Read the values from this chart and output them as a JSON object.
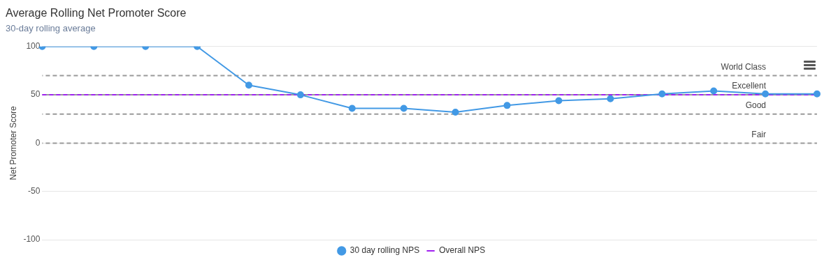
{
  "chart_data": {
    "type": "line",
    "title": "Average Rolling Net Promoter Score",
    "subtitle": "30-day rolling average",
    "ylabel": "Net Promoter Score",
    "categories": [
      null,
      null,
      null,
      null,
      null,
      null,
      null,
      null,
      null,
      null,
      null,
      null,
      null,
      null,
      null,
      null
    ],
    "series": [
      {
        "name": "30 day rolling NPS",
        "color": "#4299e5",
        "marker": "circle",
        "line_style": "solid",
        "values": [
          100,
          100,
          100,
          100,
          60,
          50,
          36,
          36,
          32,
          39,
          44,
          46,
          51,
          54,
          51,
          51
        ]
      },
      {
        "name": "Overall NPS",
        "color": "#a020f0",
        "marker": "none",
        "line_style": "dashed",
        "values": [
          50,
          50,
          50,
          50,
          50,
          50,
          50,
          50,
          50,
          50,
          50,
          50,
          50,
          50,
          50,
          50
        ]
      }
    ],
    "ylim": [
      -100,
      100
    ],
    "yticks": [
      -100,
      -50,
      0,
      50,
      100
    ],
    "grid": "y",
    "tick_labels": "y",
    "legend": "bottom",
    "ref_lines": [
      {
        "axis": "y",
        "value": 70,
        "label": "World Class",
        "color": "#999999",
        "line_style": "dashed"
      },
      {
        "axis": "y",
        "value": 50,
        "label": "Excellent",
        "color": "#999999",
        "line_style": "dashed"
      },
      {
        "axis": "y",
        "value": 30,
        "label": "Good",
        "color": "#999999",
        "line_style": "dashed"
      },
      {
        "axis": "y",
        "value": 0,
        "label": "Fair",
        "color": "#999999",
        "line_style": "dashed"
      }
    ]
  }
}
